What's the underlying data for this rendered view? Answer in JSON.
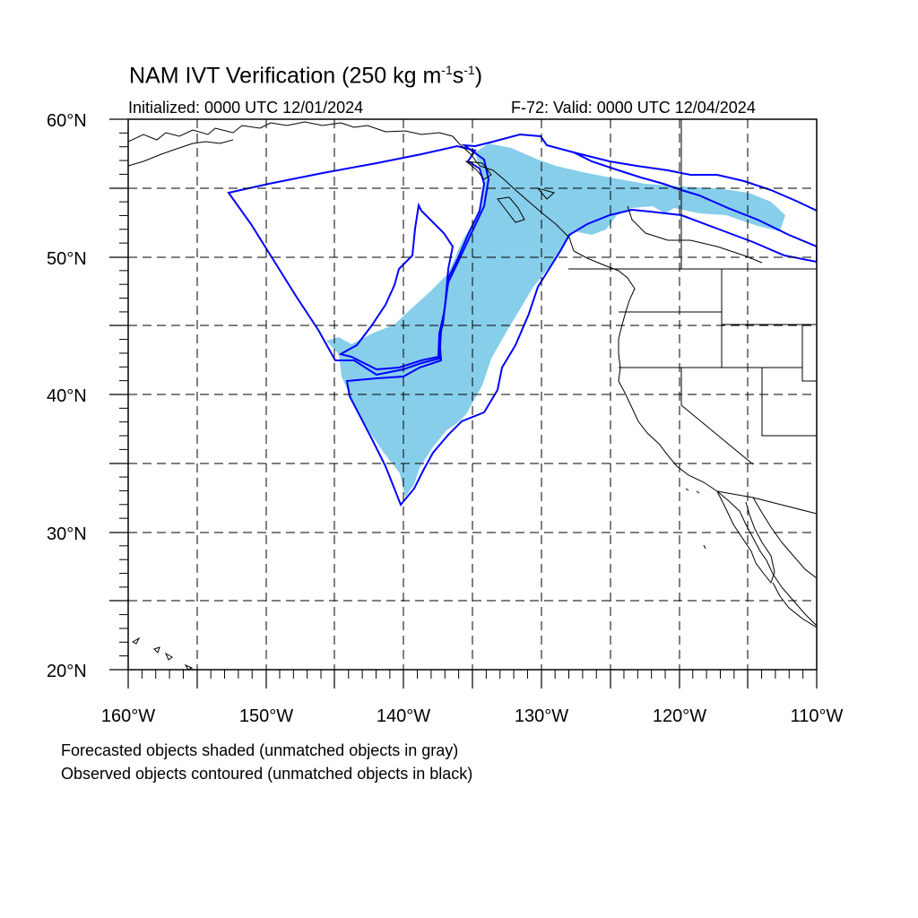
{
  "title": {
    "main": "NAM IVT Verification (250 kg m",
    "exp1": "-1",
    "mid": "s",
    "exp2": "-1",
    "close": ")"
  },
  "initialized": "Initialized: 0000 UTC 12/01/2024",
  "valid": "F-72: Valid: 0000 UTC 12/04/2024",
  "lat_labels": [
    "60°N",
    "50°N",
    "40°N",
    "30°N",
    "20°N"
  ],
  "lon_labels": [
    "160°W",
    "150°W",
    "140°W",
    "130°W",
    "120°W",
    "110°W"
  ],
  "footer": [
    "Forecasted objects shaded (unmatched objects in gray)",
    "Observed objects contoured (unmatched objects in black)"
  ],
  "map": {
    "lon_range": [
      -160,
      -110
    ],
    "lat_range": [
      20,
      60
    ],
    "grid_step_deg": 5,
    "forecast_fill_color": "#87ceeb",
    "observed_contour_color": "#0000ff",
    "grid_line": "dashed"
  }
}
